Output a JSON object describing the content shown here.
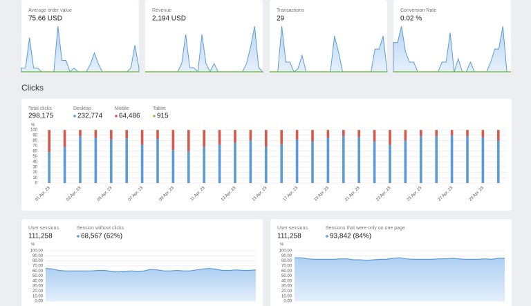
{
  "kpi_cards": [
    {
      "label": "Average order value",
      "value": "75.66 USD",
      "sparkline": [
        5,
        5,
        45,
        5,
        5,
        0,
        0,
        0,
        0,
        60,
        15,
        15,
        0,
        5,
        0,
        0,
        0,
        10,
        25,
        10,
        0,
        0,
        0,
        0,
        0,
        0,
        0,
        5,
        35,
        5
      ]
    },
    {
      "label": "Revenue",
      "value": "2,194 USD",
      "sparkline": [
        0,
        0,
        0,
        0,
        0,
        0,
        0,
        0,
        0,
        10,
        45,
        5,
        5,
        0,
        45,
        10,
        0,
        10,
        0,
        0,
        0,
        0,
        0,
        0,
        0,
        10,
        30,
        55,
        5,
        0
      ]
    },
    {
      "label": "Transactions",
      "value": "29",
      "sparkline": [
        0,
        0,
        0,
        70,
        15,
        15,
        0,
        5,
        25,
        0,
        0,
        0,
        0,
        0,
        0,
        0,
        55,
        30,
        0,
        0,
        0,
        0,
        0,
        0,
        0,
        0,
        35,
        35,
        55,
        0
      ]
    },
    {
      "label": "Conversion Rate",
      "value": "0.02 %",
      "sparkline": [
        45,
        45,
        70,
        30,
        15,
        15,
        0,
        0,
        0,
        0,
        0,
        0,
        15,
        15,
        60,
        0,
        20,
        0,
        0,
        15,
        0,
        0,
        0,
        0,
        15,
        35,
        35,
        70,
        0,
        0
      ]
    }
  ],
  "clicks": {
    "title": "Clicks",
    "stats": [
      {
        "label": "Total clicks",
        "value": "298,175"
      },
      {
        "label": "Desktop",
        "value": "232,774",
        "color": "#5b9bd5",
        "values": [
          58,
          68,
          88,
          85,
          82,
          84,
          72,
          83,
          62,
          60,
          68,
          72,
          76,
          80,
          68,
          73,
          82,
          78,
          85,
          88,
          86,
          78,
          72,
          80,
          88,
          88,
          90,
          88,
          86,
          80
        ]
      },
      {
        "label": "Mobile",
        "value": "64,486",
        "color": "#d4584b",
        "values": [
          41.7,
          31.7,
          11.7,
          14.7,
          17.7,
          15.7,
          27.7,
          16.7,
          37.7,
          39.7,
          31.7,
          27.7,
          23.7,
          19.7,
          31.7,
          26.7,
          17.7,
          21.7,
          14.7,
          11.7,
          13.7,
          21.7,
          27.7,
          19.7,
          11.7,
          11.7,
          9.7,
          11.7,
          13.7,
          19.7
        ]
      },
      {
        "label": "Tablet",
        "value": "915",
        "color": "#8bc34a",
        "values": [
          0.3,
          0.3,
          0.3,
          0.3,
          0.3,
          0.3,
          0.3,
          0.3,
          0.3,
          0.3,
          0.3,
          0.3,
          0.3,
          0.3,
          0.3,
          0.3,
          0.3,
          0.3,
          0.3,
          0.3,
          0.3,
          0.3,
          0.3,
          0.3,
          0.3,
          0.3,
          0.3,
          0.3,
          0.3,
          0.3
        ]
      }
    ],
    "chart": {
      "type": "bar",
      "stacked": true,
      "y_label": "%",
      "ylim": [
        0,
        100
      ],
      "yticks": [
        0,
        10,
        20,
        30,
        40,
        50,
        60,
        70,
        80,
        90,
        100
      ],
      "grid": true,
      "categories": [
        "01 Apr. 23",
        null,
        "03 Apr. 23",
        null,
        "05 Apr. 23",
        null,
        "07 Apr. 23",
        null,
        "09 Apr. 23",
        null,
        "11 Apr. 23",
        null,
        "13 Apr. 23",
        null,
        "15 Apr. 23",
        null,
        "17 Apr. 23",
        null,
        "19 Apr. 23",
        null,
        "21 Apr. 23",
        null,
        "23 Apr. 23",
        null,
        "25 Apr. 23",
        null,
        "27 Apr. 23",
        null,
        "29 Apr. 23",
        null
      ]
    }
  },
  "session_panels": [
    {
      "stats": [
        {
          "label": "User sessions",
          "value": "111,258"
        },
        {
          "label": "Session without clicks",
          "value": "68,567 (62%)",
          "color": "#5b9bd5"
        }
      ],
      "chart": {
        "type": "area",
        "y_label": "%",
        "ylim": [
          0,
          100
        ],
        "color": "#5b9bd5",
        "yticks": [
          {
            "value": 0,
            "label": "0.00"
          },
          {
            "value": 10,
            "label": "10.00"
          },
          {
            "value": 20,
            "label": "20.00"
          },
          {
            "value": 30,
            "label": "30.00"
          },
          {
            "value": 40,
            "label": "40.00"
          },
          {
            "value": 50,
            "label": "50.00"
          },
          {
            "value": 60,
            "label": "60.00"
          },
          {
            "value": 70,
            "label": "70.00"
          },
          {
            "value": 80,
            "label": "80.00"
          },
          {
            "value": 90,
            "label": "90.00"
          },
          {
            "value": 100,
            "label": "100.00"
          }
        ],
        "values": [
          65,
          64,
          61,
          60,
          60,
          60,
          60,
          60,
          61,
          61,
          59,
          58,
          59,
          60,
          59,
          60,
          63,
          62,
          60,
          60,
          61,
          60,
          60,
          62,
          64,
          65,
          63,
          61,
          61,
          62,
          61,
          61,
          62
        ]
      }
    },
    {
      "stats": [
        {
          "label": "User sessions",
          "value": "111,258"
        },
        {
          "label": "Sessions that were only on one page",
          "value": "93,842 (84%)",
          "color": "#5b9bd5"
        }
      ],
      "chart": {
        "type": "area",
        "y_label": "%",
        "ylim": [
          0,
          100
        ],
        "color": "#5b9bd5",
        "yticks": [
          {
            "value": 0,
            "label": "0.00"
          },
          {
            "value": 10,
            "label": "10.00"
          },
          {
            "value": 20,
            "label": "20.00"
          },
          {
            "value": 30,
            "label": "30.00"
          },
          {
            "value": 40,
            "label": "40.00"
          },
          {
            "value": 50,
            "label": "50.00"
          },
          {
            "value": 60,
            "label": "60.00"
          },
          {
            "value": 70,
            "label": "70.00"
          },
          {
            "value": 80,
            "label": "80.00"
          },
          {
            "value": 90,
            "label": "90.00"
          },
          {
            "value": 100,
            "label": "100.00"
          }
        ],
        "values": [
          86,
          86,
          84,
          83,
          83,
          83,
          83,
          84,
          84,
          82,
          82,
          81,
          82,
          83,
          83,
          85,
          86,
          84,
          83,
          83,
          83,
          83,
          84,
          84,
          85,
          84,
          83,
          83,
          83,
          84,
          83,
          85,
          85
        ]
      }
    }
  ]
}
